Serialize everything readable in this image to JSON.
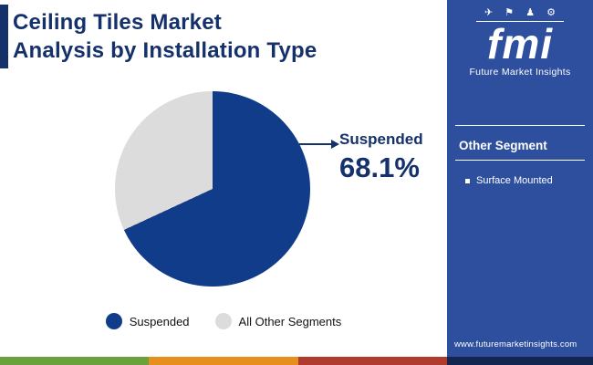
{
  "header": {
    "title_line1": "Ceiling Tiles Market",
    "title_line2": "Analysis by Installation Type"
  },
  "chart_data": {
    "type": "pie",
    "title": "Ceiling Tiles Market Analysis by Installation Type",
    "slices": [
      {
        "label": "Suspended",
        "value": 68.1,
        "color": "#103c8a"
      },
      {
        "label": "All Other Segments",
        "value": 31.9,
        "color": "#dcdcdc"
      }
    ],
    "callout": {
      "label": "Suspended",
      "value": "68.1%"
    },
    "legend_position": "bottom",
    "accent_color": "#15316c"
  },
  "sidebar": {
    "background": "#2d4f9e",
    "logo": {
      "icons": "✈ ⚑ ♟ ⚙",
      "text": "fmi",
      "brand": "Future Market Insights"
    },
    "section_title": "Other Segment",
    "items": [
      {
        "label": "Surface Mounted"
      }
    ],
    "website": "www.futuremarketinsights.com"
  },
  "footer_stripe": {
    "colors": [
      "#69a23b",
      "#e78f1d",
      "#b03a2e",
      "#12264f"
    ]
  }
}
